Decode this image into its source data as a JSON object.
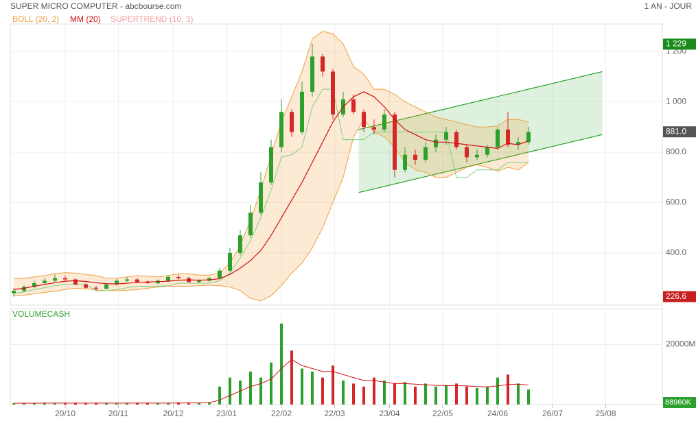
{
  "header": {
    "title": "SUPER MICRO COMPUTER - abcbourse.com",
    "period": "1 AN - JOUR"
  },
  "chart_data": [
    {
      "type": "candlestick",
      "legend": [
        {
          "name": "BOLL (20, 2)",
          "color": "#f0a040"
        },
        {
          "name": "MM (20)",
          "color": "#d01010"
        },
        {
          "name": "SUPERTREND (10, 3)",
          "color": "#f4a0a0"
        }
      ],
      "up_color": "#2ca02c",
      "down_color": "#d62728",
      "xlim": [
        0,
        380
      ],
      "ylim": [
        193,
        1309
      ],
      "yticks": [
        {
          "value": 400,
          "label": "400.0"
        },
        {
          "value": 600,
          "label": "600.0"
        },
        {
          "value": 800,
          "label": "800.0"
        },
        {
          "value": 1000,
          "label": "1 000"
        },
        {
          "value": 1200,
          "label": "1 200"
        }
      ],
      "price_tags": [
        {
          "value": 1229,
          "label": "1 229",
          "color": "#1a8a1a"
        },
        {
          "value": 881,
          "label": "881.0",
          "color": "#555555"
        },
        {
          "value": 226.6,
          "label": "226.6",
          "color": "#c81e1e"
        }
      ],
      "x": [
        2,
        8,
        14,
        20,
        26,
        32,
        38,
        44,
        50,
        56,
        62,
        68,
        74,
        80,
        86,
        92,
        98,
        104,
        110,
        116,
        122,
        128,
        134,
        140,
        146,
        152,
        158,
        164,
        170,
        176,
        182,
        188,
        194,
        200,
        206,
        212,
        218,
        224,
        230,
        236,
        242,
        248,
        254,
        260,
        266,
        272,
        278,
        284,
        290,
        296,
        302
      ],
      "open": [
        240,
        250,
        265,
        280,
        290,
        300,
        295,
        275,
        262,
        258,
        275,
        290,
        295,
        285,
        280,
        290,
        305,
        300,
        285,
        290,
        300,
        330,
        400,
        470,
        560,
        680,
        820,
        960,
        880,
        1040,
        1180,
        1120,
        950,
        1010,
        960,
        900,
        890,
        950,
        730,
        790,
        770,
        820,
        850,
        880,
        820,
        780,
        790,
        820,
        890,
        830,
        840
      ],
      "high": [
        260,
        272,
        290,
        300,
        315,
        310,
        300,
        280,
        270,
        280,
        298,
        305,
        300,
        292,
        295,
        312,
        315,
        305,
        295,
        305,
        340,
        420,
        490,
        590,
        720,
        850,
        1010,
        970,
        1080,
        1229,
        1190,
        1130,
        1040,
        1030,
        970,
        930,
        970,
        960,
        820,
        810,
        840,
        870,
        900,
        890,
        830,
        810,
        830,
        900,
        960,
        860,
        900
      ],
      "low": [
        226.6,
        245,
        260,
        275,
        285,
        290,
        272,
        258,
        250,
        255,
        270,
        285,
        280,
        278,
        275,
        285,
        295,
        282,
        280,
        285,
        295,
        325,
        390,
        460,
        550,
        670,
        800,
        860,
        870,
        1020,
        1100,
        930,
        940,
        950,
        880,
        870,
        880,
        700,
        720,
        750,
        760,
        800,
        830,
        810,
        760,
        770,
        780,
        810,
        820,
        810,
        830
      ],
      "close": [
        250,
        265,
        280,
        290,
        300,
        295,
        275,
        262,
        258,
        275,
        290,
        295,
        285,
        280,
        290,
        305,
        300,
        285,
        290,
        300,
        330,
        400,
        470,
        560,
        680,
        820,
        960,
        880,
        1040,
        1180,
        1120,
        950,
        1010,
        960,
        900,
        890,
        950,
        730,
        790,
        770,
        820,
        850,
        880,
        820,
        780,
        790,
        820,
        890,
        830,
        840,
        881
      ],
      "boll_upper": [
        300,
        300,
        305,
        310,
        318,
        322,
        320,
        315,
        310,
        300,
        300,
        305,
        310,
        308,
        305,
        310,
        318,
        318,
        312,
        312,
        320,
        360,
        430,
        530,
        650,
        790,
        920,
        1020,
        1120,
        1250,
        1280,
        1270,
        1230,
        1140,
        1110,
        1050,
        1050,
        1030,
        1000,
        980,
        960,
        940,
        930,
        920,
        910,
        900,
        900,
        905,
        930,
        930,
        920
      ],
      "boll_lower": [
        230,
        232,
        238,
        243,
        248,
        255,
        260,
        258,
        253,
        250,
        250,
        252,
        255,
        260,
        265,
        268,
        268,
        268,
        270,
        272,
        270,
        265,
        250,
        220,
        210,
        230,
        270,
        320,
        360,
        420,
        500,
        600,
        700,
        860,
        930,
        880,
        860,
        820,
        760,
        730,
        720,
        700,
        700,
        720,
        740,
        750,
        740,
        725,
        740,
        730,
        760
      ],
      "mm": [
        255,
        260,
        268,
        275,
        282,
        288,
        290,
        287,
        282,
        278,
        277,
        280,
        283,
        285,
        286,
        288,
        292,
        293,
        292,
        293,
        298,
        315,
        340,
        370,
        410,
        470,
        540,
        610,
        680,
        760,
        840,
        920,
        980,
        1020,
        1040,
        1020,
        980,
        930,
        890,
        870,
        850,
        840,
        840,
        835,
        830,
        825,
        820,
        815,
        835,
        830,
        845
      ],
      "supertrend": [
        240,
        245,
        255,
        262,
        270,
        275,
        275,
        275,
        250,
        250,
        255,
        262,
        268,
        268,
        268,
        270,
        280,
        280,
        280,
        280,
        290,
        320,
        380,
        450,
        540,
        650,
        780,
        790,
        820,
        980,
        1050,
        1050,
        850,
        850,
        850,
        880,
        880,
        880,
        880,
        880,
        880,
        880,
        880,
        700,
        700,
        730,
        730,
        730,
        760,
        760,
        760
      ],
      "channel": {
        "x": [
          203,
          345
        ],
        "upper": [
          890,
          1120
        ],
        "lower": [
          640,
          870
        ],
        "color": "#22a022"
      }
    },
    {
      "type": "bar",
      "title": "VOLUMECASH",
      "up_color": "#2ca02c",
      "down_color": "#d62728",
      "line_color": "#d01010",
      "xlim": [
        0,
        380
      ],
      "ylim": [
        0,
        32000
      ],
      "yticks": [
        {
          "value": 20000,
          "label": "20000M"
        }
      ],
      "last_label": "88960K",
      "xticks": [
        {
          "value": 32,
          "label": "20/10"
        },
        {
          "value": 63,
          "label": "20/11"
        },
        {
          "value": 95,
          "label": "20/12"
        },
        {
          "value": 126,
          "label": "23/01"
        },
        {
          "value": 158,
          "label": "22/02"
        },
        {
          "value": 189,
          "label": "22/03"
        },
        {
          "value": 221,
          "label": "23/04"
        },
        {
          "value": 252,
          "label": "22/05"
        },
        {
          "value": 284,
          "label": "24/06"
        },
        {
          "value": 316,
          "label": "26/07"
        },
        {
          "value": 347,
          "label": "25/08"
        }
      ],
      "values": [
        400,
        500,
        450,
        600,
        500,
        400,
        500,
        450,
        600,
        500,
        400,
        500,
        600,
        500,
        450,
        500,
        700,
        600,
        500,
        800,
        6000,
        9000,
        8000,
        11000,
        9000,
        14000,
        27000,
        18000,
        12000,
        11000,
        9000,
        13000,
        8000,
        7000,
        6000,
        9000,
        8000,
        7000,
        7500,
        6000,
        7000,
        6000,
        6500,
        7000,
        6000,
        5500,
        6000,
        9000,
        10000,
        7000,
        5000
      ],
      "mm": [
        450,
        460,
        470,
        480,
        490,
        490,
        480,
        480,
        490,
        500,
        490,
        490,
        500,
        510,
        500,
        500,
        520,
        540,
        550,
        600,
        1500,
        3000,
        4500,
        6000,
        7000,
        8500,
        12000,
        15000,
        13000,
        12000,
        11000,
        11000,
        10000,
        9000,
        8000,
        8000,
        7500,
        7000,
        7000,
        6800,
        6600,
        6400,
        6300,
        6300,
        6200,
        6000,
        5900,
        6200,
        6700,
        6800,
        6500
      ]
    }
  ]
}
